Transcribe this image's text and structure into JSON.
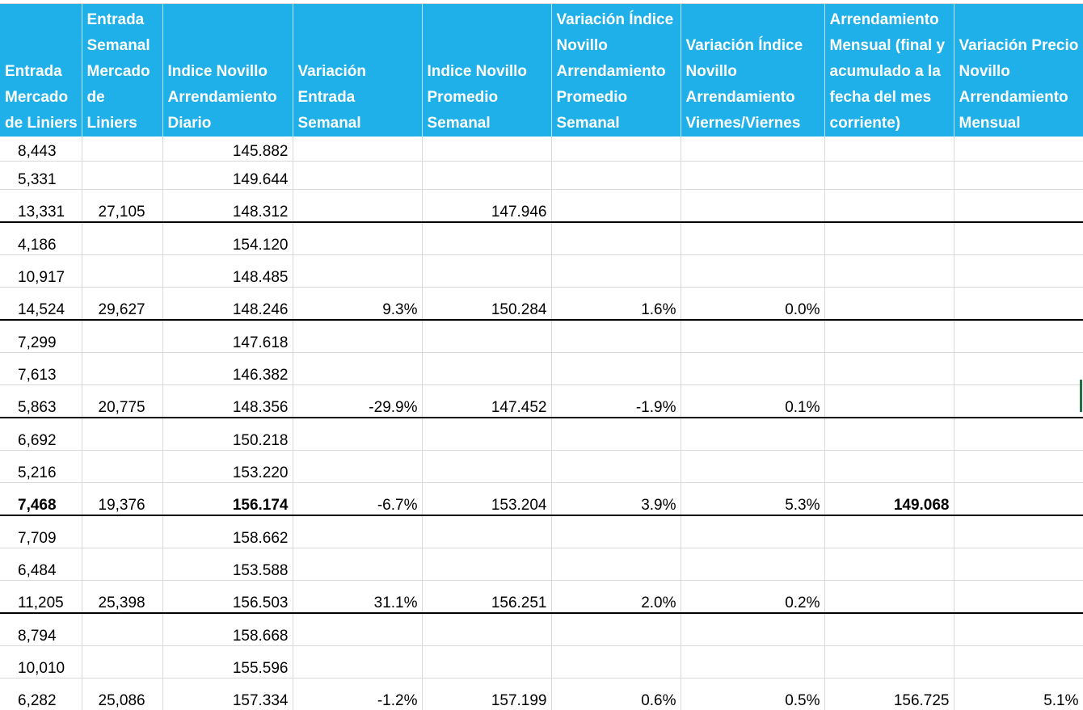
{
  "headers": [
    "Entrada Mercado de Liniers",
    "Entrada Semanal Mercado de Liniers",
    "Indice Novillo Arrendamiento Diario",
    "Variación Entrada Semanal",
    "Indice Novillo Promedio Semanal",
    "Variación Índice Novillo Arrendamiento Promedio Semanal",
    "Variación Índice Novillo Arrendamiento Viernes/Viernes",
    "Arrendamiento Mensual (final y acumulado a la fecha del mes corriente)",
    "Variación Precio Novillo Arrendamiento Mensual"
  ],
  "rows": [
    {
      "cells": [
        "8,443",
        "",
        "145.882",
        "",
        "",
        "",
        "",
        "",
        ""
      ]
    },
    {
      "cells": [
        "5,331",
        "",
        "149.644",
        "",
        "",
        "",
        "",
        "",
        ""
      ]
    },
    {
      "cells": [
        "13,331",
        "27,105",
        "148.312",
        "",
        "147.946",
        "",
        "",
        "",
        ""
      ],
      "week_end": true
    },
    {
      "cells": [
        "4,186",
        "",
        "154.120",
        "",
        "",
        "",
        "",
        "",
        ""
      ]
    },
    {
      "cells": [
        "10,917",
        "",
        "148.485",
        "",
        "",
        "",
        "",
        "",
        ""
      ]
    },
    {
      "cells": [
        "14,524",
        "29,627",
        "148.246",
        "9.3%",
        "150.284",
        "1.6%",
        "0.0%",
        "",
        ""
      ],
      "week_end": true
    },
    {
      "cells": [
        "7,299",
        "",
        "147.618",
        "",
        "",
        "",
        "",
        "",
        ""
      ]
    },
    {
      "cells": [
        "7,613",
        "",
        "146.382",
        "",
        "",
        "",
        "",
        "",
        ""
      ]
    },
    {
      "cells": [
        "5,863",
        "20,775",
        "148.356",
        "-29.9%",
        "147.452",
        "-1.9%",
        "0.1%",
        "",
        ""
      ],
      "week_end": true
    },
    {
      "cells": [
        "6,692",
        "",
        "150.218",
        "",
        "",
        "",
        "",
        "",
        ""
      ]
    },
    {
      "cells": [
        "5,216",
        "",
        "153.220",
        "",
        "",
        "",
        "",
        "",
        ""
      ]
    },
    {
      "cells": [
        "7,468",
        "19,376",
        "156.174",
        "-6.7%",
        "153.204",
        "3.9%",
        "5.3%",
        "149.068",
        ""
      ],
      "week_end": true,
      "bold_cols": [
        0,
        2,
        7
      ]
    },
    {
      "cells": [
        "7,709",
        "",
        "158.662",
        "",
        "",
        "",
        "",
        "",
        ""
      ]
    },
    {
      "cells": [
        "6,484",
        "",
        "153.588",
        "",
        "",
        "",
        "",
        "",
        ""
      ]
    },
    {
      "cells": [
        "11,205",
        "25,398",
        "156.503",
        "31.1%",
        "156.251",
        "2.0%",
        "0.2%",
        "",
        ""
      ],
      "week_end": true
    },
    {
      "cells": [
        "8,794",
        "",
        "158.668",
        "",
        "",
        "",
        "",
        "",
        ""
      ]
    },
    {
      "cells": [
        "10,010",
        "",
        "155.596",
        "",
        "",
        "",
        "",
        "",
        ""
      ]
    },
    {
      "cells": [
        "6,282",
        "25,086",
        "157.334",
        "-1.2%",
        "157.199",
        "0.6%",
        "0.5%",
        "156.725",
        "5.1%"
      ],
      "last": true
    }
  ],
  "colors": {
    "header_bg": "#1fb0ea",
    "header_text": "#ffffff",
    "week_separator": "#000000",
    "grid": "#d9d9d9"
  }
}
